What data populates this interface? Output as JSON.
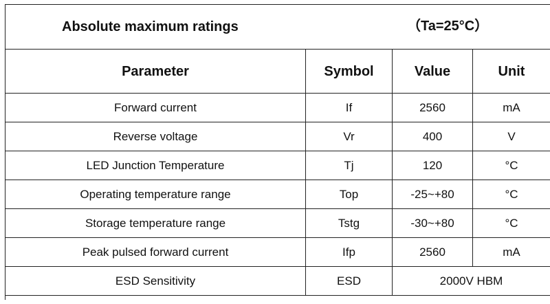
{
  "table": {
    "title": "Absolute maximum ratings",
    "condition": "（Ta=25°C）",
    "headers": {
      "parameter": "Parameter",
      "symbol": "Symbol",
      "value": "Value",
      "unit": "Unit"
    },
    "rows": [
      {
        "parameter": "Forward current",
        "symbol": "If",
        "value": "2560",
        "unit": "mA"
      },
      {
        "parameter": "Reverse voltage",
        "symbol": "Vr",
        "value": "400",
        "unit": "V"
      },
      {
        "parameter": "LED Junction Temperature",
        "symbol": "Tj",
        "value": "120",
        "unit": "°C"
      },
      {
        "parameter": "Operating temperature range",
        "symbol": "Top",
        "value": "-25~+80",
        "unit": "°C"
      },
      {
        "parameter": "Storage temperature range",
        "symbol": "Tstg",
        "value": "-30~+80",
        "unit": "°C"
      },
      {
        "parameter": "Peak pulsed forward current",
        "symbol": "Ifp",
        "value": "2560",
        "unit": "mA"
      }
    ],
    "esd_row": {
      "parameter": "ESD Sensitivity",
      "symbol": "ESD",
      "value": "2000V HBM"
    }
  }
}
